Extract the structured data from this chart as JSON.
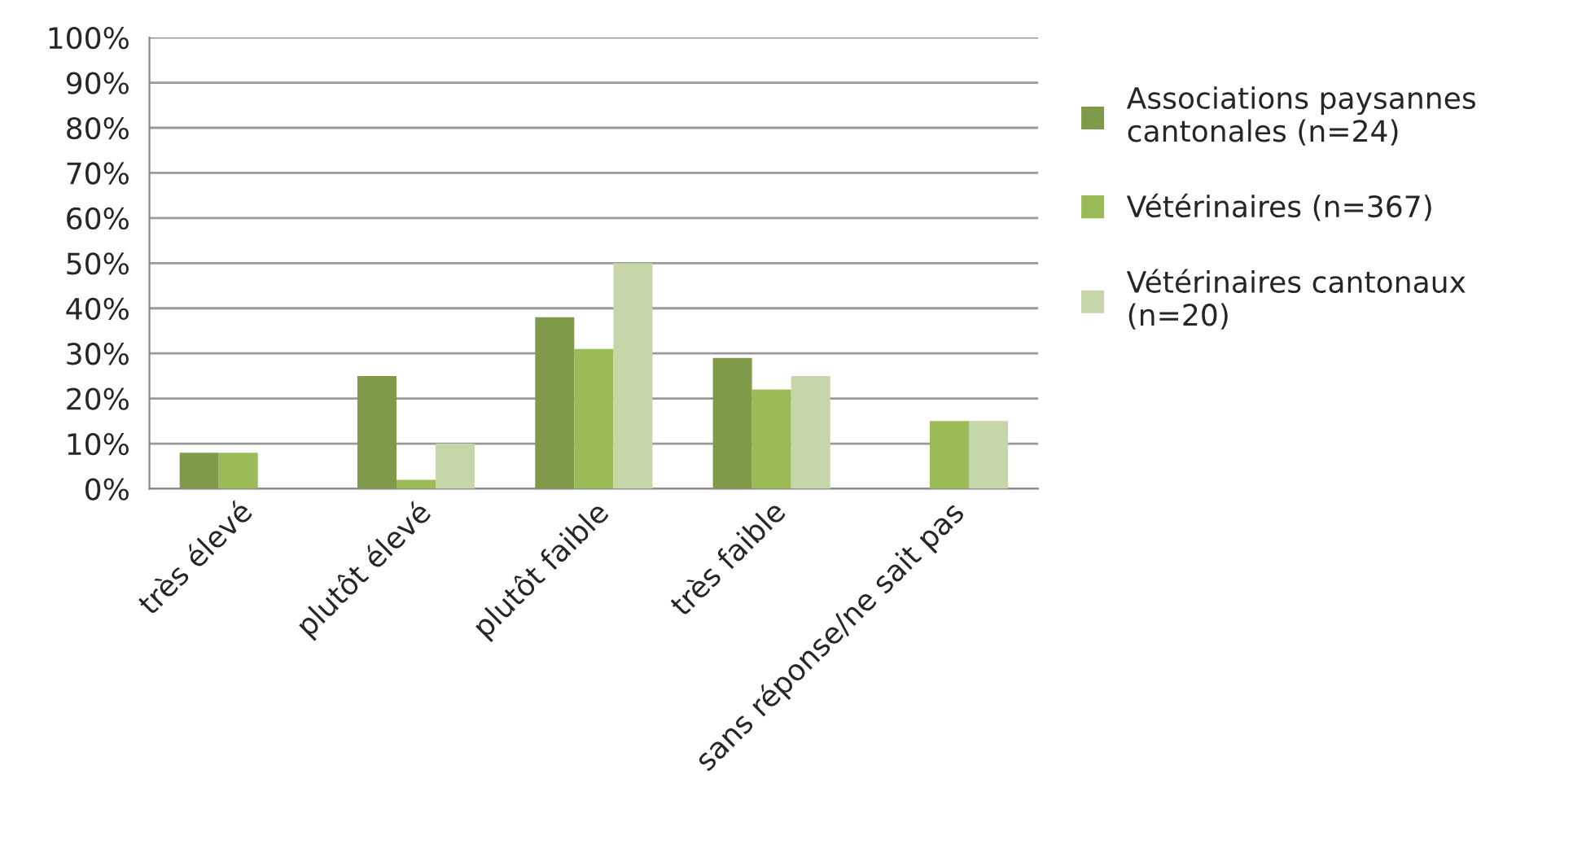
{
  "chart_data": {
    "type": "bar",
    "categories": [
      "très élevé",
      "plutôt élevé",
      "plutôt faible",
      "très faible",
      "sans réponse/ne sait pas"
    ],
    "series": [
      {
        "name": "Associations paysannes\ncantonales (n=24)",
        "color": "#7f9a48",
        "values": [
          8,
          25,
          38,
          29,
          null
        ]
      },
      {
        "name": "Vétérinaires (n=367)",
        "color": "#9bbb59",
        "values": [
          8,
          2,
          31,
          22,
          15
        ]
      },
      {
        "name": "Vétérinaires cantonaux\n(n=20)",
        "color": "#c5d6a9",
        "values": [
          null,
          10,
          50,
          25,
          15
        ]
      }
    ],
    "ylim": [
      0,
      100
    ],
    "yticks": [
      {
        "value": 0,
        "label": "0%"
      },
      {
        "value": 10,
        "label": "10%"
      },
      {
        "value": 20,
        "label": "20%"
      },
      {
        "value": 30,
        "label": "30%"
      },
      {
        "value": 40,
        "label": "40%"
      },
      {
        "value": 50,
        "label": "50%"
      },
      {
        "value": 60,
        "label": "60%"
      },
      {
        "value": 70,
        "label": "70%"
      },
      {
        "value": 80,
        "label": "80%"
      },
      {
        "value": 90,
        "label": "90%"
      },
      {
        "value": 100,
        "label": "100%"
      }
    ],
    "grid": "y",
    "legend": "right"
  }
}
